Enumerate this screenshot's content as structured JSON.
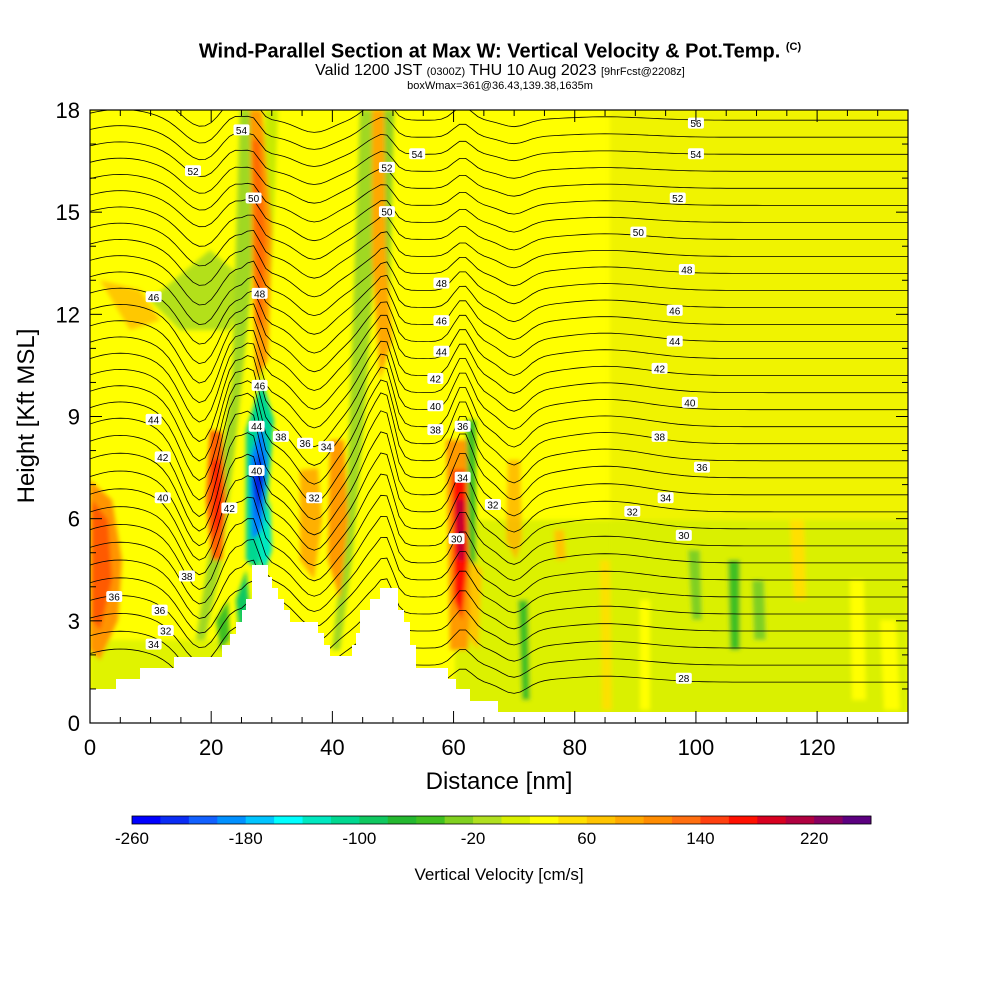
{
  "header": {
    "title_main": "Wind-Parallel Section at Max W: Vertical Velocity & Pot.Temp.",
    "title_copyright": "(C)",
    "valid_a": "Valid 1200 JST",
    "valid_b": "(0300Z)",
    "valid_c": "THU 10 Aug 2023",
    "valid_d": "[9hrFcst@2208z]",
    "box_info": "boxWmax=361@36.43,139.38,1635m"
  },
  "chart_data": {
    "type": "heatmap",
    "xlabel": "Distance [nm]",
    "ylabel": "Height [Kft MSL]",
    "xlim": [
      0,
      135
    ],
    "ylim": [
      0,
      18
    ],
    "x_ticks": [
      0,
      20,
      40,
      60,
      80,
      100,
      120
    ],
    "y_ticks": [
      0,
      3,
      6,
      9,
      12,
      15,
      18
    ],
    "colorbar": {
      "label": "Vertical Velocity [cm/s]",
      "range": [
        -260,
        260
      ],
      "tick_labels": [
        "-260",
        "-180",
        "-100",
        "-20",
        "60",
        "140",
        "220"
      ],
      "tick_values": [
        -260,
        -180,
        -100,
        -20,
        60,
        140,
        220
      ],
      "colors": [
        "#0000ff",
        "#0a2cf5",
        "#1260ff",
        "#0090ff",
        "#00c4ff",
        "#00ffff",
        "#00e8c0",
        "#00d890",
        "#10c860",
        "#24b830",
        "#40c020",
        "#80d020",
        "#b0e020",
        "#d8f000",
        "#ffff00",
        "#ffe000",
        "#ffc400",
        "#ffa800",
        "#ff8c00",
        "#ff6e10",
        "#ff4010",
        "#ff1000",
        "#d80020",
        "#b00040",
        "#880060",
        "#5c0080"
      ]
    },
    "contour_labels": [
      {
        "x": 4,
        "y": 3.7,
        "text": "36"
      },
      {
        "x": 10.5,
        "y": 2.3,
        "text": "34"
      },
      {
        "x": 12.5,
        "y": 2.7,
        "text": "32"
      },
      {
        "x": 11.5,
        "y": 3.3,
        "text": "36"
      },
      {
        "x": 16,
        "y": 4.3,
        "text": "38"
      },
      {
        "x": 12,
        "y": 6.6,
        "text": "40"
      },
      {
        "x": 12,
        "y": 7.8,
        "text": "42"
      },
      {
        "x": 10.5,
        "y": 8.9,
        "text": "44"
      },
      {
        "x": 10.5,
        "y": 12.5,
        "text": "46"
      },
      {
        "x": 17,
        "y": 16.2,
        "text": "52"
      },
      {
        "x": 25,
        "y": 17.4,
        "text": "54"
      },
      {
        "x": 23,
        "y": 6.3,
        "text": "42"
      },
      {
        "x": 27.5,
        "y": 7.4,
        "text": "40"
      },
      {
        "x": 27.5,
        "y": 8.7,
        "text": "44"
      },
      {
        "x": 28,
        "y": 9.9,
        "text": "46"
      },
      {
        "x": 28,
        "y": 12.6,
        "text": "48"
      },
      {
        "x": 27,
        "y": 15.4,
        "text": "50"
      },
      {
        "x": 31.5,
        "y": 8.4,
        "text": "38"
      },
      {
        "x": 35.5,
        "y": 8.2,
        "text": "36"
      },
      {
        "x": 39,
        "y": 8.1,
        "text": "34"
      },
      {
        "x": 37,
        "y": 6.6,
        "text": "32"
      },
      {
        "x": 49,
        "y": 16.3,
        "text": "52"
      },
      {
        "x": 49,
        "y": 15.0,
        "text": "50"
      },
      {
        "x": 54,
        "y": 16.7,
        "text": "54"
      },
      {
        "x": 58,
        "y": 12.9,
        "text": "48"
      },
      {
        "x": 58,
        "y": 11.8,
        "text": "46"
      },
      {
        "x": 58,
        "y": 10.9,
        "text": "44"
      },
      {
        "x": 57,
        "y": 10.1,
        "text": "42"
      },
      {
        "x": 57,
        "y": 9.3,
        "text": "40"
      },
      {
        "x": 57,
        "y": 8.6,
        "text": "38"
      },
      {
        "x": 61.5,
        "y": 8.7,
        "text": "36"
      },
      {
        "x": 61.5,
        "y": 7.2,
        "text": "34"
      },
      {
        "x": 66.5,
        "y": 6.4,
        "text": "32"
      },
      {
        "x": 60.5,
        "y": 5.4,
        "text": "30"
      },
      {
        "x": 100,
        "y": 17.6,
        "text": "56"
      },
      {
        "x": 100,
        "y": 16.7,
        "text": "54"
      },
      {
        "x": 97,
        "y": 15.4,
        "text": "52"
      },
      {
        "x": 90.5,
        "y": 14.4,
        "text": "50"
      },
      {
        "x": 98.5,
        "y": 13.3,
        "text": "48"
      },
      {
        "x": 96.5,
        "y": 12.1,
        "text": "46"
      },
      {
        "x": 96.5,
        "y": 11.2,
        "text": "44"
      },
      {
        "x": 94,
        "y": 10.4,
        "text": "42"
      },
      {
        "x": 99,
        "y": 9.4,
        "text": "40"
      },
      {
        "x": 94,
        "y": 8.4,
        "text": "38"
      },
      {
        "x": 101,
        "y": 7.5,
        "text": "36"
      },
      {
        "x": 95,
        "y": 6.6,
        "text": "34"
      },
      {
        "x": 89.5,
        "y": 6.2,
        "text": "32"
      },
      {
        "x": 98,
        "y": 5.5,
        "text": "30"
      },
      {
        "x": 98,
        "y": 1.3,
        "text": "28"
      }
    ]
  }
}
